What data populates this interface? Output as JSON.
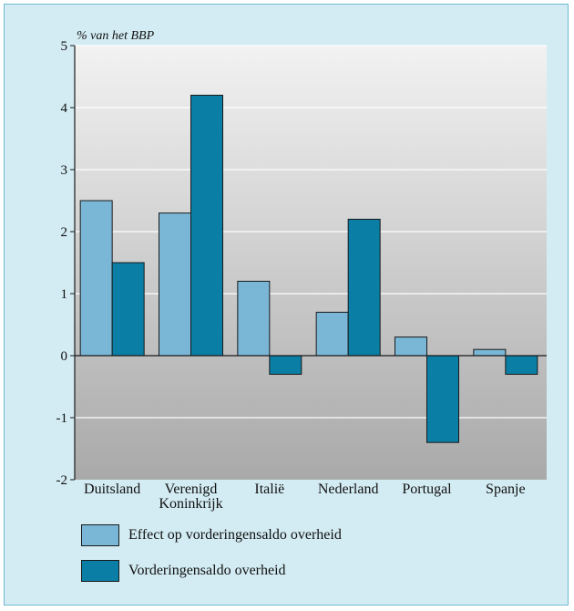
{
  "chart_data": {
    "type": "bar",
    "y_unit_label": "% van het BBP",
    "categories": [
      [
        "Duitsland"
      ],
      [
        "Verenigd",
        "Koninkrijk"
      ],
      [
        "Italië"
      ],
      [
        "Nederland"
      ],
      [
        "Portugal"
      ],
      [
        "Spanje"
      ]
    ],
    "series": [
      {
        "name": "Effect op vorderingensaldo overheid",
        "values": [
          2.5,
          2.3,
          1.2,
          0.7,
          0.3,
          0.1
        ],
        "color": "#7ab7d6"
      },
      {
        "name": "Vorderingensaldo overheid",
        "values": [
          1.5,
          4.2,
          -0.3,
          2.2,
          -1.4,
          -0.3
        ],
        "color": "#0a7ea4"
      }
    ],
    "ylim": [
      -2,
      5
    ],
    "yticks": [
      5,
      4,
      3,
      2,
      1,
      0,
      -1,
      -2
    ],
    "grid": true,
    "legend_position": "bottom",
    "background_color": "#d3ecf3",
    "plot_gradient": [
      "#f2f2f2",
      "#a9a9a9"
    ]
  }
}
